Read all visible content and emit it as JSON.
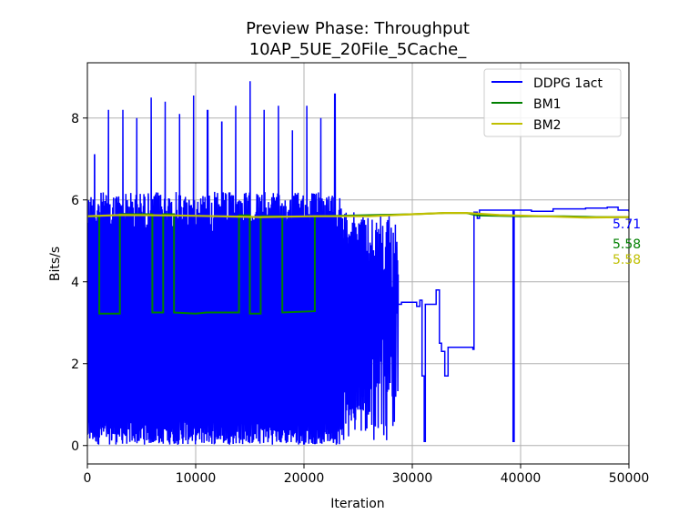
{
  "chart_data": {
    "type": "line",
    "title": "Preview Phase: Throughput",
    "subtitle": "10AP_5UE_20File_5Cache_",
    "xlabel": "Iteration",
    "ylabel": "Bits/s",
    "xlim": [
      0,
      50000
    ],
    "ylim": [
      -0.45,
      9.35
    ],
    "xticks": [
      0,
      10000,
      20000,
      30000,
      40000,
      50000
    ],
    "yticks": [
      0,
      2,
      4,
      6,
      8
    ],
    "grid": true,
    "legend_position": "top-right",
    "series": [
      {
        "name": "DDPG 1act",
        "color": "#0000ff",
        "end_label": "5.71",
        "segments": [
          {
            "type": "noise",
            "x": [
              0,
              23500
            ],
            "ymin": 0.02,
            "ymax_base": 6.2,
            "spikes": [
              7.1,
              8.2,
              8.2,
              8.0,
              8.5,
              8.4,
              8.1,
              8.55,
              8.2,
              7.9,
              8.3,
              8.9,
              8.2,
              8.3,
              7.7,
              8.3,
              8.0,
              8.6
            ]
          },
          {
            "type": "noise_taper",
            "x": [
              23500,
              28700
            ],
            "ymin": 0.1,
            "ymax": 5.7
          },
          {
            "type": "steps",
            "points": [
              [
                28700,
                3.45
              ],
              [
                29000,
                3.5
              ],
              [
                30300,
                3.5
              ],
              [
                30400,
                3.4
              ],
              [
                30700,
                3.55
              ],
              [
                30900,
                1.7
              ],
              [
                31100,
                0.1
              ],
              [
                31200,
                3.45
              ],
              [
                31900,
                3.45
              ],
              [
                32200,
                3.8
              ],
              [
                32500,
                2.5
              ],
              [
                32700,
                2.3
              ],
              [
                33000,
                1.7
              ],
              [
                33300,
                2.4
              ],
              [
                35600,
                2.35
              ],
              [
                35700,
                5.7
              ],
              [
                36000,
                5.55
              ],
              [
                36200,
                5.75
              ],
              [
                39200,
                5.75
              ],
              [
                39300,
                0.1
              ],
              [
                39400,
                5.75
              ],
              [
                41000,
                5.72
              ],
              [
                43000,
                5.78
              ],
              [
                46000,
                5.8
              ],
              [
                48000,
                5.82
              ],
              [
                49000,
                5.75
              ],
              [
                50000,
                5.71
              ]
            ]
          }
        ]
      },
      {
        "name": "BM1",
        "color": "#008000",
        "end_label": "5.58",
        "steps": [
          [
            0,
            5.6
          ],
          [
            1100,
            5.6
          ],
          [
            1100,
            3.22
          ],
          [
            3000,
            3.22
          ],
          [
            3000,
            5.65
          ],
          [
            6000,
            5.65
          ],
          [
            6000,
            3.25
          ],
          [
            7000,
            3.25
          ],
          [
            7000,
            5.65
          ],
          [
            8000,
            5.65
          ],
          [
            8000,
            3.25
          ],
          [
            10000,
            3.22
          ],
          [
            11000,
            3.25
          ],
          [
            14000,
            3.25
          ],
          [
            14000,
            5.62
          ],
          [
            15000,
            5.62
          ],
          [
            15000,
            3.22
          ],
          [
            16000,
            3.22
          ],
          [
            16000,
            5.6
          ],
          [
            18000,
            5.6
          ],
          [
            18000,
            3.25
          ],
          [
            21000,
            3.28
          ],
          [
            21000,
            5.6
          ],
          [
            30000,
            5.65
          ],
          [
            33000,
            5.68
          ],
          [
            35000,
            5.68
          ],
          [
            36000,
            5.62
          ],
          [
            40000,
            5.6
          ],
          [
            44000,
            5.6
          ],
          [
            47000,
            5.58
          ],
          [
            50000,
            5.58
          ]
        ]
      },
      {
        "name": "BM2",
        "color": "#bfbf00",
        "end_label": "5.58",
        "points": [
          [
            0,
            5.6
          ],
          [
            3000,
            5.63
          ],
          [
            8000,
            5.62
          ],
          [
            12000,
            5.6
          ],
          [
            16000,
            5.58
          ],
          [
            21000,
            5.6
          ],
          [
            26000,
            5.6
          ],
          [
            30000,
            5.65
          ],
          [
            33000,
            5.68
          ],
          [
            35000,
            5.68
          ],
          [
            38000,
            5.63
          ],
          [
            42000,
            5.6
          ],
          [
            46000,
            5.57
          ],
          [
            50000,
            5.58
          ]
        ]
      }
    ]
  }
}
